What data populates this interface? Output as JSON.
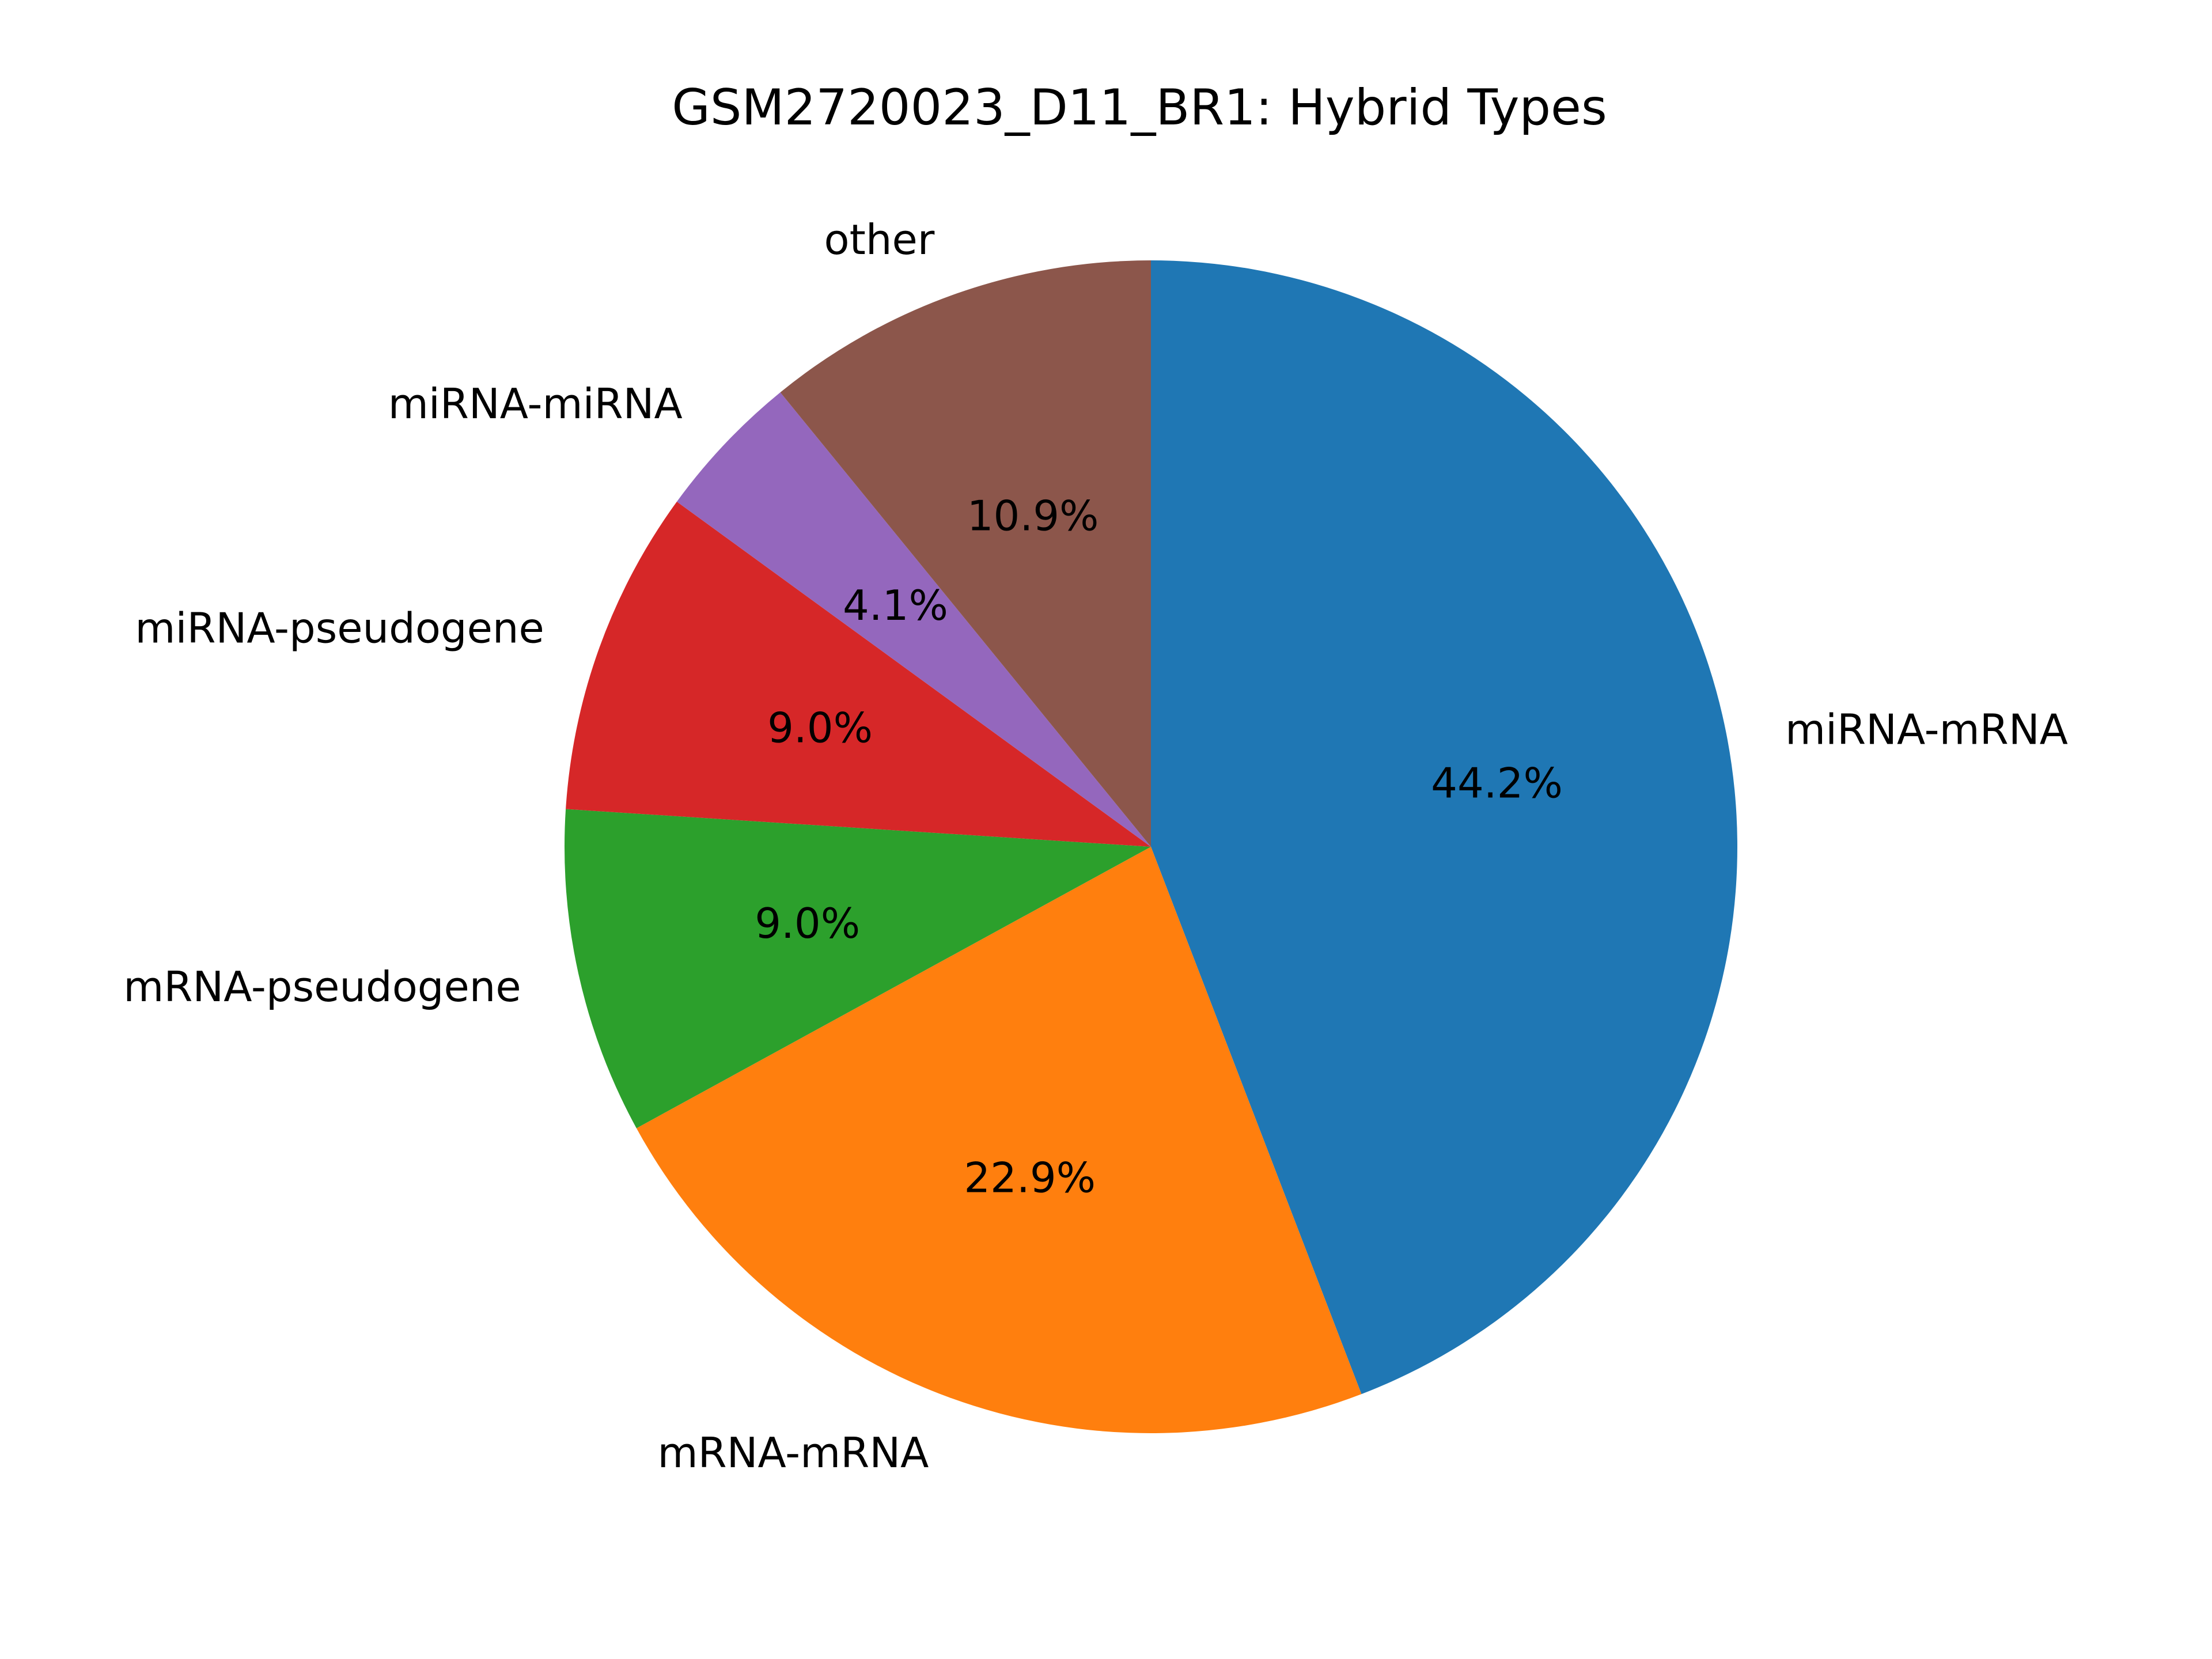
{
  "chart_data": {
    "type": "pie",
    "title": "GSM2720023_D11_BR1: Hybrid Types",
    "start_angle_deg": 90,
    "direction": "clockwise",
    "legend": "none",
    "slices": [
      {
        "label": "miRNA-mRNA",
        "value": 44.2,
        "pct_label": "44.2%",
        "color": "#1f77b4"
      },
      {
        "label": "mRNA-mRNA",
        "value": 22.9,
        "pct_label": "22.9%",
        "color": "#ff7f0e"
      },
      {
        "label": "mRNA-pseudogene",
        "value": 9.0,
        "pct_label": "9.0%",
        "color": "#2ca02c"
      },
      {
        "label": "miRNA-pseudogene",
        "value": 9.0,
        "pct_label": "9.0%",
        "color": "#d62728"
      },
      {
        "label": "miRNA-miRNA",
        "value": 4.1,
        "pct_label": "4.1%",
        "color": "#9467bd"
      },
      {
        "label": "other",
        "value": 10.9,
        "pct_label": "10.9%",
        "color": "#8c564b"
      }
    ]
  }
}
